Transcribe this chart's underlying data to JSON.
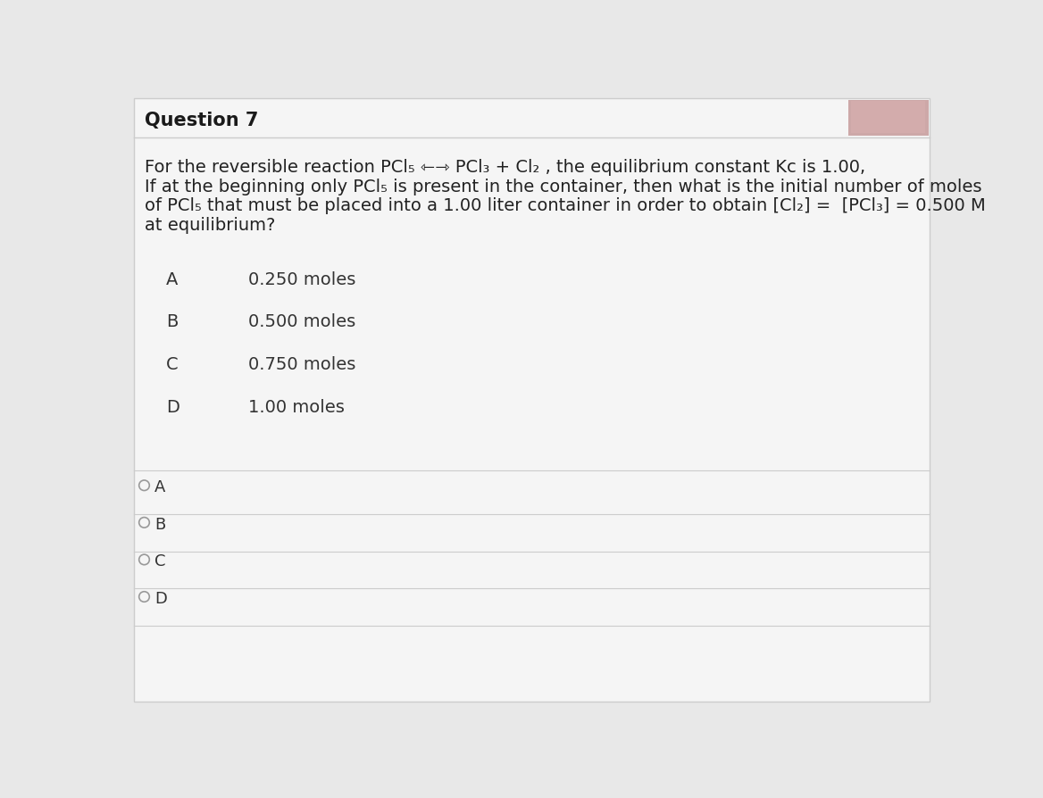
{
  "title": "Question 7",
  "bg_color": "#e8e8e8",
  "card_color": "#f5f5f5",
  "q_line1": "For the reversible reaction PCl₅ ⇽⇾ PCl₃ + Cl₂ , the equilibrium constant Kᴄ is 1.00,",
  "q_line2": "If at the beginning only PCl₅ is present in the container, then what is the initial number of moles",
  "q_line3": "of PCl₅ that must be placed into a 1.00 liter container in order to obtain [Cl₂] =  [PCl₃] = 0.500 M",
  "q_line4": "at equilibrium?",
  "options": [
    {
      "label": "A",
      "text": "0.250 moles"
    },
    {
      "label": "B",
      "text": "0.500 moles"
    },
    {
      "label": "C",
      "text": "0.750 moles"
    },
    {
      "label": "D",
      "text": "1.00 moles"
    }
  ],
  "radio_options": [
    "A",
    "B",
    "C",
    "D"
  ],
  "title_fontsize": 15,
  "body_fontsize": 14,
  "option_fontsize": 14,
  "radio_fontsize": 13,
  "line_color": "#cccccc",
  "title_color": "#1a1a1a",
  "text_color": "#222222",
  "option_color": "#333333"
}
